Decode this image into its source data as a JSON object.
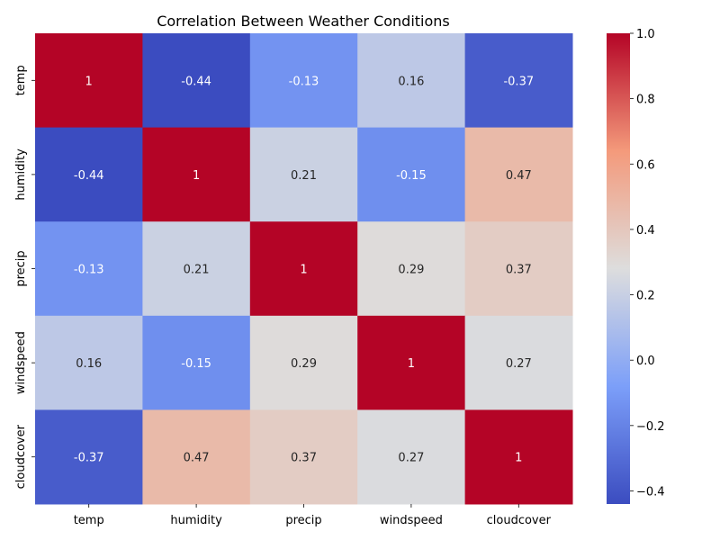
{
  "chart_data": {
    "type": "heatmap",
    "title": "Correlation Between Weather Conditions",
    "x_labels": [
      "temp",
      "humidity",
      "precip",
      "windspeed",
      "cloudcover"
    ],
    "y_labels": [
      "temp",
      "humidity",
      "precip",
      "windspeed",
      "cloudcover"
    ],
    "values": [
      [
        1,
        -0.44,
        -0.13,
        0.16,
        -0.37
      ],
      [
        -0.44,
        1,
        0.21,
        -0.15,
        0.47
      ],
      [
        -0.13,
        0.21,
        1,
        0.29,
        0.37
      ],
      [
        0.16,
        -0.15,
        0.29,
        1,
        0.27
      ],
      [
        -0.37,
        0.47,
        0.37,
        0.27,
        1
      ]
    ],
    "value_labels": [
      [
        "1",
        "-0.44",
        "-0.13",
        "0.16",
        "-0.37"
      ],
      [
        "-0.44",
        "1",
        "0.21",
        "-0.15",
        "0.47"
      ],
      [
        "-0.13",
        "0.21",
        "1",
        "0.29",
        "0.37"
      ],
      [
        "0.16",
        "-0.15",
        "0.29",
        "1",
        "0.27"
      ],
      [
        "-0.37",
        "0.47",
        "0.37",
        "0.27",
        "1"
      ]
    ],
    "colormap": "coolwarm",
    "colorbar": {
      "range": [
        -0.44,
        1.0
      ],
      "ticks": [
        -0.4,
        -0.2,
        0.0,
        0.2,
        0.4,
        0.6,
        0.8,
        1.0
      ],
      "tick_labels": [
        "−0.4",
        "−0.2",
        "0.0",
        "0.2",
        "0.4",
        "0.6",
        "0.8",
        "1.0"
      ]
    },
    "grid": false,
    "legend": "colorbar-right"
  }
}
